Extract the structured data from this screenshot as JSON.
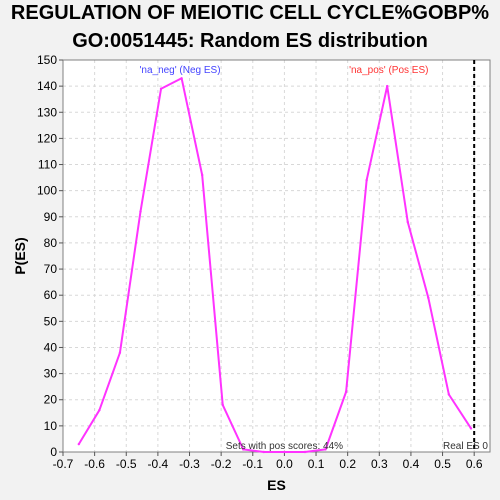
{
  "chart_data": {
    "type": "line",
    "title_lines": [
      "REGULATION OF MEIOTIC CELL CYCLE%GOBP%",
      "GO:0051445: Random ES distribution"
    ],
    "xlabel": "ES",
    "ylabel": "P(ES)",
    "xlim": [
      -0.7,
      0.65
    ],
    "ylim": [
      0,
      150
    ],
    "x_ticks": [
      -0.7,
      -0.6,
      -0.5,
      -0.4,
      -0.3,
      -0.2,
      -0.1,
      0.0,
      0.1,
      0.2,
      0.3,
      0.4,
      0.5,
      0.6
    ],
    "x_tick_labels": [
      "-0.7",
      "-0.6",
      "-0.5",
      "-0.4",
      "-0.3",
      "-0.2",
      "-0.1",
      "0.0",
      "0.1",
      "0.2",
      "0.3",
      "0.4",
      "0.5",
      "0.6"
    ],
    "y_ticks": [
      0,
      10,
      20,
      30,
      40,
      50,
      60,
      70,
      80,
      90,
      100,
      110,
      120,
      130,
      140,
      150
    ],
    "y_tick_labels": [
      "0",
      "10",
      "20",
      "30",
      "40",
      "50",
      "60",
      "70",
      "80",
      "90",
      "100",
      "110",
      "120",
      "130",
      "140",
      "150"
    ],
    "grid": true,
    "series": [
      {
        "name": "'na_neg' (Neg ES)",
        "color": "#ff33ff",
        "x": [
          -0.65,
          -0.585,
          -0.52,
          -0.455,
          -0.39,
          -0.325,
          -0.26,
          -0.195,
          -0.13
        ],
        "y": [
          3,
          16,
          38,
          92,
          139,
          143,
          106,
          18,
          1
        ]
      },
      {
        "name": "'na_pos' (Pos ES)",
        "color": "#ff33ff",
        "x": [
          -0.13,
          -0.065,
          0.0,
          0.065,
          0.13,
          0.195,
          0.26,
          0.325,
          0.39,
          0.455,
          0.52,
          0.59
        ],
        "y": [
          1,
          0,
          0,
          0,
          1,
          23,
          104,
          140,
          88,
          59,
          22,
          9
        ]
      }
    ],
    "legend_neg": {
      "text": "'na_neg' (Neg ES)",
      "color": "#4444ff",
      "x": -0.33
    },
    "legend_pos": {
      "text": "'na_pos' (Pos ES)",
      "color": "#ff3333",
      "x": 0.33
    },
    "real_es": {
      "value": 0.6,
      "label": "Real ES 0"
    },
    "annotation": "Sets with pos scores: 44%"
  }
}
